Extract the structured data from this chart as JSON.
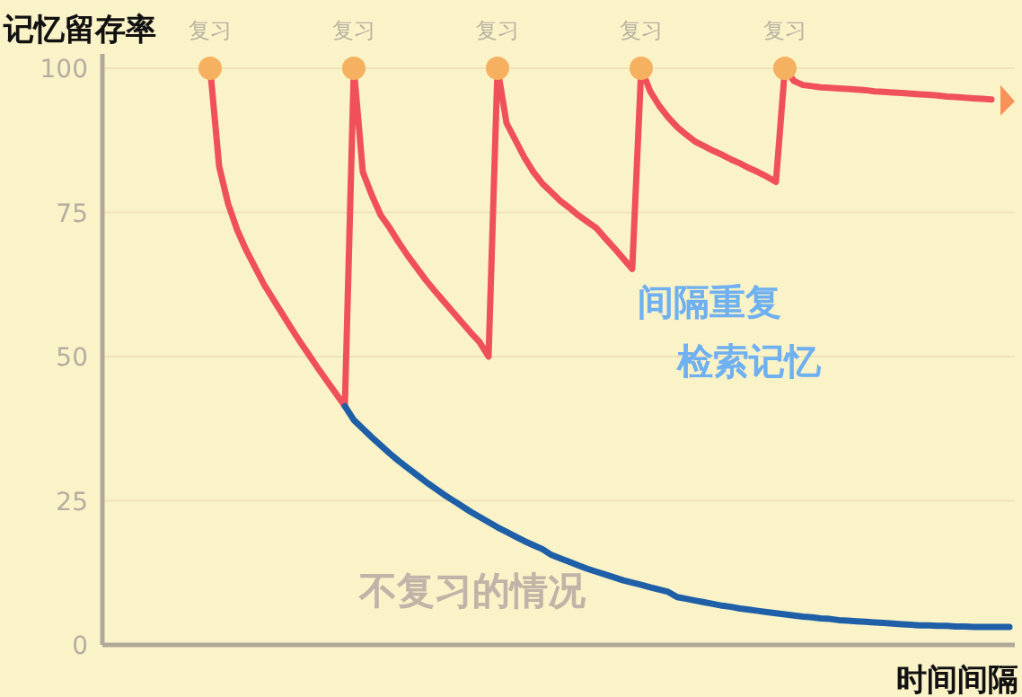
{
  "chart_data": {
    "type": "line",
    "xlabel": "时间间隔",
    "ylabel": "记忆留存率",
    "categories": [
      null,
      null,
      null,
      null,
      null,
      null,
      null,
      null,
      null,
      null,
      null,
      null,
      null,
      null,
      null,
      null,
      null,
      null,
      null,
      null,
      null,
      null,
      null,
      null,
      null,
      null,
      null,
      null,
      null,
      null,
      null,
      null,
      null,
      null,
      null,
      null,
      null,
      null,
      null,
      null,
      null,
      null,
      null,
      null,
      null,
      null,
      null,
      null,
      null,
      null,
      null,
      null,
      null,
      null,
      null,
      null,
      null,
      null,
      null,
      null,
      null,
      null,
      null,
      null,
      null,
      null,
      null,
      null,
      null,
      null,
      null,
      null,
      null,
      null,
      null,
      null,
      null,
      null,
      null,
      null,
      null,
      null,
      null,
      null,
      null,
      null,
      null,
      null,
      null,
      null,
      null,
      null,
      null,
      null,
      null,
      null,
      null,
      null,
      null,
      null,
      null,
      null
    ],
    "ylim": [
      0,
      100
    ],
    "yticks": [
      0,
      25,
      50,
      75,
      100
    ],
    "tick_labels": "y",
    "grid": "y",
    "line_style": "solid",
    "series": [
      {
        "color": "#f0505a",
        "values": [
          null,
          null,
          null,
          null,
          null,
          null,
          null,
          null,
          null,
          null,
          null,
          null,
          100,
          83,
          76.5,
          72,
          68.5,
          65.5,
          62.5,
          60,
          57.5,
          55,
          52.6,
          50.3,
          48,
          45.8,
          43.6,
          41.4,
          100,
          82,
          78,
          74.5,
          72.3,
          69.8,
          67.5,
          65.4,
          63.3,
          61.4,
          59.6,
          57.8,
          56,
          54.2,
          52.5,
          50,
          100,
          90.5,
          87.5,
          84.5,
          82,
          80,
          78.5,
          77,
          75.8,
          74.5,
          73.4,
          72.3,
          70.5,
          68.8,
          67,
          65.2,
          100,
          96,
          93.5,
          91.5,
          89.8,
          88.5,
          87.3,
          86.5,
          85.7,
          85,
          84.2,
          83.5,
          82.7,
          82,
          81.2,
          80.3,
          100,
          97.8,
          97.1,
          96.9,
          96.7,
          96.6,
          96.5,
          96.4,
          96.3,
          96.2,
          96,
          95.9,
          95.8,
          95.7,
          95.6,
          95.5,
          95.4,
          95.3,
          95.1,
          95,
          94.9,
          94.8,
          94.7,
          94.6,
          null,
          null
        ]
      },
      {
        "color": "#1e5fa8",
        "values": [
          null,
          null,
          null,
          null,
          null,
          null,
          null,
          null,
          null,
          null,
          null,
          null,
          null,
          null,
          null,
          null,
          null,
          null,
          null,
          null,
          null,
          null,
          null,
          null,
          null,
          null,
          null,
          41.4,
          39,
          37.5,
          36,
          34.6,
          33.2,
          31.9,
          30.7,
          29.5,
          28.3,
          27.2,
          26.1,
          25.1,
          24.1,
          23.1,
          22.2,
          21.3,
          20.4,
          19.6,
          18.8,
          18,
          17.3,
          16.6,
          15.6,
          15,
          14.4,
          13.8,
          13.2,
          12.7,
          12.2,
          11.7,
          11.2,
          10.8,
          10.4,
          10,
          9.6,
          9.2,
          8.3,
          8,
          7.7,
          7.4,
          7.1,
          6.8,
          6.6,
          6.3,
          6.1,
          5.9,
          5.7,
          5.5,
          5.3,
          5.1,
          4.9,
          4.8,
          4.6,
          4.5,
          4.3,
          4.2,
          4.1,
          4,
          3.9,
          3.8,
          3.7,
          3.6,
          3.5,
          3.4,
          3.4,
          3.3,
          3.3,
          3.2,
          3.2,
          3.1,
          3.1,
          3.1,
          3.1,
          3.1
        ]
      }
    ],
    "annotations": [
      "复习",
      "复习",
      "复习",
      "复习",
      "复习",
      "间隔重复",
      "检索记忆",
      "不复习的情况"
    ]
  }
}
